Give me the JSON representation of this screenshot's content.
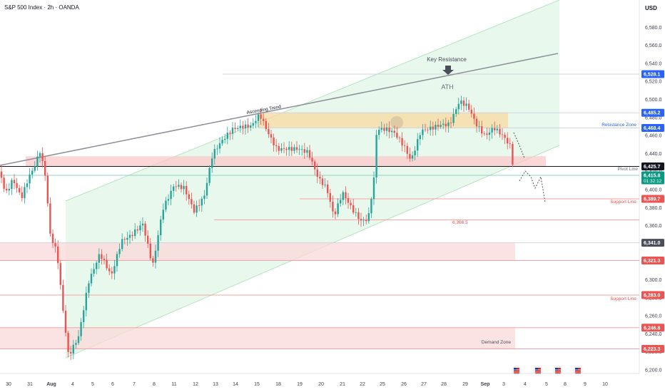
{
  "header": {
    "title": "S&P 500 Index · 2h · OANDA",
    "currency": "USD"
  },
  "colors": {
    "up": "#26a69a",
    "down": "#ef5350",
    "blue": "#2962ff",
    "black": "#131722",
    "dark": "#4a4e59",
    "teal": "#089981",
    "grid": "#f0f3fa"
  },
  "annotations": {
    "key_resistance": "Key Resistance",
    "ath": "ATH",
    "ascending_trend": "Ascending Trend",
    "resistance_zone": "Resistance Zone",
    "pivot_line": "Pivot Line",
    "support_line_1": "Support  Line",
    "support_line_2": "Support Line",
    "demand_zone": "Demand Zone",
    "level_6366": "6,366.5"
  },
  "chart_data": {
    "type": "candlestick",
    "title": "S&P 500 Index · 2h · OANDA",
    "y_axis": {
      "side": "right",
      "unit": "USD",
      "range": [
        6196,
        6604
      ],
      "ticks": [
        "6,580.0",
        "6,560.0",
        "6,540.0",
        "6,520.0",
        "6,500.0",
        "6,480.0",
        "6,460.0",
        "6,440.0",
        "6,420.0",
        "6,400.0",
        "6,380.0",
        "6,360.0",
        "6,340.0",
        "6,320.0",
        "6,300.0",
        "6,280.0",
        "6,260.0",
        "6,240.0",
        "6,220.0",
        "6,200.0"
      ]
    },
    "x_axis": {
      "ticks": [
        {
          "label": "30",
          "bold": false
        },
        {
          "label": "31",
          "bold": false
        },
        {
          "label": "Aug",
          "bold": true
        },
        {
          "label": "4",
          "bold": false
        },
        {
          "label": "5",
          "bold": false
        },
        {
          "label": "6",
          "bold": false
        },
        {
          "label": "7",
          "bold": false
        },
        {
          "label": "8",
          "bold": false
        },
        {
          "label": "11",
          "bold": false
        },
        {
          "label": "12",
          "bold": false
        },
        {
          "label": "13",
          "bold": false
        },
        {
          "label": "14",
          "bold": false
        },
        {
          "label": "15",
          "bold": false
        },
        {
          "label": "18",
          "bold": false
        },
        {
          "label": "19",
          "bold": false
        },
        {
          "label": "20",
          "bold": false
        },
        {
          "label": "21",
          "bold": false
        },
        {
          "label": "22",
          "bold": false
        },
        {
          "label": "25",
          "bold": false
        },
        {
          "label": "26",
          "bold": false
        },
        {
          "label": "27",
          "bold": false
        },
        {
          "label": "28",
          "bold": false
        },
        {
          "label": "29",
          "bold": false
        },
        {
          "label": "Sep",
          "bold": true
        },
        {
          "label": "3",
          "bold": false
        },
        {
          "label": "4",
          "bold": false
        },
        {
          "label": "5",
          "bold": false
        },
        {
          "label": "8",
          "bold": false
        },
        {
          "label": "9",
          "bold": false
        },
        {
          "label": "10",
          "bold": false
        }
      ]
    },
    "price_labels": [
      {
        "value": 6528.1,
        "text": "6,528.1",
        "color": "#2962ff"
      },
      {
        "value": 6485.2,
        "text": "6,485.2",
        "color": "#2962ff"
      },
      {
        "value": 6468.4,
        "text": "6,468.4",
        "color": "#2962ff"
      },
      {
        "value": 6425.7,
        "text": "6,425.7",
        "color": "#131722"
      },
      {
        "value": 6415.8,
        "text": "6,415.8",
        "color": "#089981",
        "sub": "01:32:12"
      },
      {
        "value": 6389.7,
        "text": "6,389.7",
        "color": "#ef5350"
      },
      {
        "value": 6341.0,
        "text": "6,341.0",
        "color": "#4a4e59"
      },
      {
        "value": 6321.3,
        "text": "6,321.3",
        "color": "#ef5350"
      },
      {
        "value": 6283.0,
        "text": "6,283.0",
        "color": "#ef5350"
      },
      {
        "value": 6246.8,
        "text": "6,246.8",
        "color": "#ef5350"
      },
      {
        "value": 6223.3,
        "text": "6,223.3",
        "color": "#ef5350"
      }
    ],
    "zones": [
      {
        "name": "resistance zone",
        "from": 6468.4,
        "to": 6485.2,
        "color": "#f7d9a0"
      },
      {
        "name": "pivot zone",
        "from": 6425.7,
        "to": 6437,
        "color": "#f9c9ca"
      },
      {
        "name": "mid zone",
        "from": 6321.3,
        "to": 6341.0,
        "color": "#fbdada"
      },
      {
        "name": "demand zone",
        "from": 6223.3,
        "to": 6246.8,
        "color": "#fbdada"
      }
    ],
    "key_points": [
      {
        "label": "ATH",
        "value": 6508
      },
      {
        "label": "Aug low",
        "value": 6214
      },
      {
        "label": "6,366.5",
        "value": 6366.5
      }
    ],
    "last_price": 6415.8
  }
}
